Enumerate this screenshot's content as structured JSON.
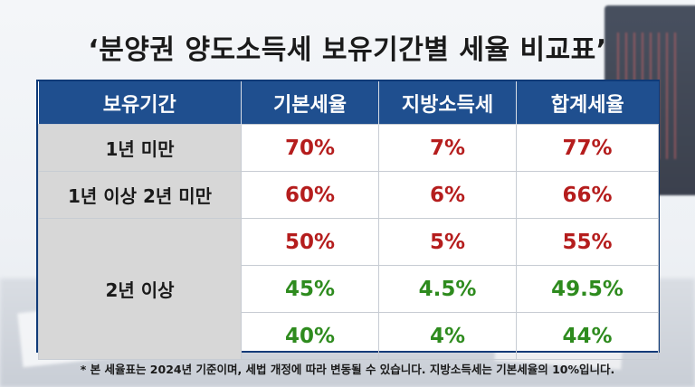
{
  "title": "‘분양권 양도소득세 보유기간별 세율 비교표’",
  "colors": {
    "header_bg": "#1f4f8f",
    "period_bg": "#d7d7d7",
    "red": "#b51d1d",
    "green": "#2e8b1e"
  },
  "table": {
    "headers": [
      "보유기간",
      "기본세율",
      "지방소득세",
      "합계세율"
    ],
    "groups": [
      {
        "period": "1년 미만",
        "rows": [
          [
            "70%",
            "7%",
            "77%"
          ]
        ]
      },
      {
        "period": "1년 이상 2년 미만",
        "rows": [
          [
            "60%",
            "6%",
            "66%"
          ]
        ]
      },
      {
        "period": "2년 이상",
        "rows": [
          [
            "50%",
            "5%",
            "55%"
          ],
          [
            "45%",
            "4.5%",
            "49.5%"
          ],
          [
            "40%",
            "4%",
            "44%"
          ]
        ]
      }
    ]
  },
  "footnote": "* 본 세율표는 2024년 기준이며, 세법 개정에 따라 변동될 수 있습니다. 지방소득세는 기본세율의 10%입니다."
}
